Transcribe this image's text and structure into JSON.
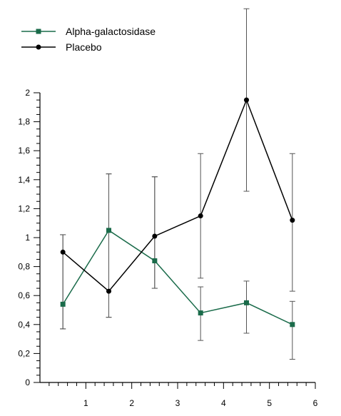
{
  "chart_data": {
    "type": "line",
    "title": "",
    "xlabel": "",
    "ylabel": "",
    "xlim": [
      0,
      6
    ],
    "ylim": [
      0,
      2
    ],
    "x_ticks": [
      "1",
      "2",
      "3",
      "4",
      "5",
      "6"
    ],
    "y_ticks": [
      "0",
      "0,2",
      "0,4",
      "0,6",
      "0,8",
      "1",
      "1,2",
      "1,4",
      "1,6",
      "1,8",
      "2"
    ],
    "grid": false,
    "legend_position": "top-left",
    "series": [
      {
        "name": "Alpha-galactosidase",
        "color": "#1a6b4a",
        "marker": "square",
        "x": [
          0.5,
          1.5,
          2.5,
          3.5,
          4.5,
          5.5
        ],
        "y": [
          0.54,
          1.05,
          0.84,
          0.48,
          0.55,
          0.4
        ],
        "err_low": [
          0.37,
          0.45,
          0.65,
          0.29,
          0.34,
          0.16
        ],
        "err_high": [
          1.02,
          1.44,
          1.42,
          0.66,
          0.7,
          0.56
        ]
      },
      {
        "name": "Placebo",
        "color": "#000000",
        "marker": "circle",
        "x": [
          0.5,
          1.5,
          2.5,
          3.5,
          4.5,
          5.5
        ],
        "y": [
          0.9,
          0.63,
          1.01,
          1.15,
          1.95,
          1.12
        ],
        "err_low": [
          0.37,
          0.45,
          0.65,
          0.72,
          1.32,
          0.63
        ],
        "err_high": [
          1.02,
          1.44,
          1.42,
          1.58,
          2.58,
          1.58
        ]
      }
    ]
  }
}
